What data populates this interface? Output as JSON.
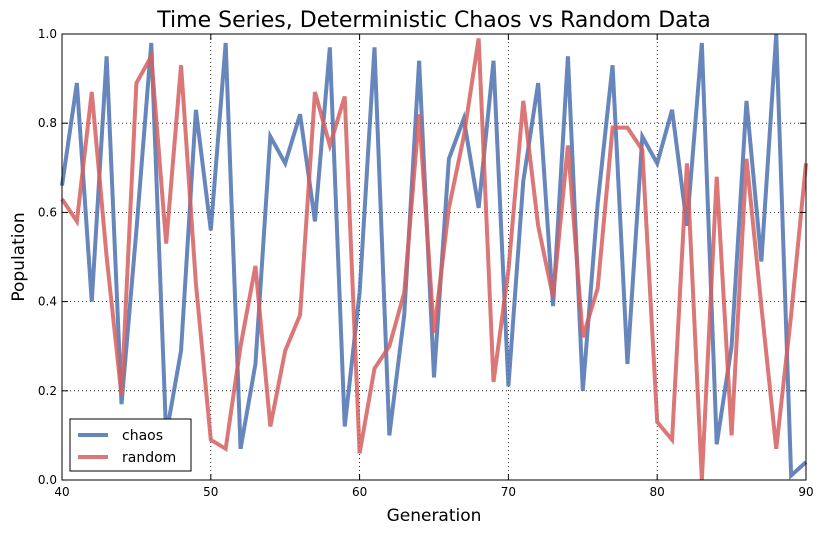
{
  "chart_data": {
    "type": "line",
    "title": "Time Series, Deterministic Chaos vs Random Data",
    "xlabel": "Generation",
    "ylabel": "Population",
    "xlim": [
      40,
      90
    ],
    "ylim": [
      0.0,
      1.0
    ],
    "xticks": [
      40,
      50,
      60,
      70,
      80,
      90
    ],
    "yticks": [
      0.0,
      0.2,
      0.4,
      0.6,
      0.8,
      1.0
    ],
    "xtick_labels": [
      "40",
      "50",
      "60",
      "70",
      "80",
      "90"
    ],
    "ytick_labels": [
      "0.0",
      "0.2",
      "0.4",
      "0.6",
      "0.8",
      "1.0"
    ],
    "grid": true,
    "legend_position": "lower-left",
    "x": [
      40,
      41,
      42,
      43,
      44,
      45,
      46,
      47,
      48,
      49,
      50,
      51,
      52,
      53,
      54,
      55,
      56,
      57,
      58,
      59,
      60,
      61,
      62,
      63,
      64,
      65,
      66,
      67,
      68,
      69,
      70,
      71,
      72,
      73,
      74,
      75,
      76,
      77,
      78,
      79,
      80,
      81,
      82,
      83,
      84,
      85,
      86,
      87,
      88,
      89,
      90
    ],
    "series": [
      {
        "name": "chaos",
        "color": "#4c72b0",
        "values": [
          0.66,
          0.89,
          0.4,
          0.95,
          0.17,
          0.56,
          0.98,
          0.1,
          0.29,
          0.83,
          0.56,
          0.98,
          0.07,
          0.26,
          0.77,
          0.71,
          0.82,
          0.58,
          0.97,
          0.12,
          0.42,
          0.97,
          0.1,
          0.37,
          0.94,
          0.23,
          0.72,
          0.81,
          0.61,
          0.94,
          0.21,
          0.67,
          0.89,
          0.39,
          0.95,
          0.2,
          0.62,
          0.93,
          0.26,
          0.77,
          0.71,
          0.83,
          0.57,
          0.98,
          0.08,
          0.3,
          0.85,
          0.49,
          1.0,
          0.01,
          0.04
        ]
      },
      {
        "name": "random",
        "color": "#d65f5f",
        "values": [
          0.63,
          0.58,
          0.87,
          0.5,
          0.19,
          0.89,
          0.95,
          0.53,
          0.93,
          0.44,
          0.09,
          0.07,
          0.3,
          0.48,
          0.12,
          0.29,
          0.37,
          0.87,
          0.75,
          0.86,
          0.06,
          0.25,
          0.3,
          0.42,
          0.82,
          0.33,
          0.61,
          0.77,
          0.99,
          0.22,
          0.47,
          0.85,
          0.57,
          0.41,
          0.75,
          0.32,
          0.43,
          0.79,
          0.79,
          0.74,
          0.13,
          0.09,
          0.71,
          0.0,
          0.68,
          0.1,
          0.72,
          0.39,
          0.07,
          0.37,
          0.71
        ]
      }
    ]
  }
}
